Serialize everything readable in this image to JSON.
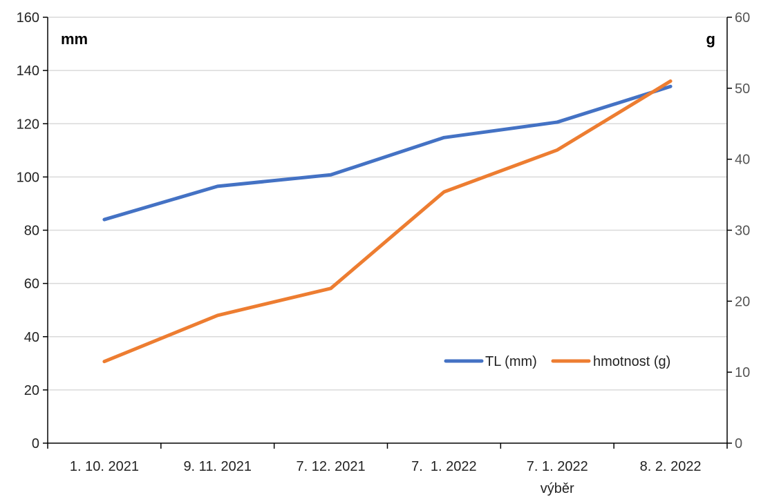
{
  "chart_data": {
    "type": "line",
    "categories": [
      "1. 10. 2021",
      "9. 11. 2021",
      "7. 12. 2021",
      "7.  1. 2022",
      "7. 1. 2022",
      "8. 2. 2022"
    ],
    "xlabel": "výběr",
    "y_left": {
      "unit": "mm",
      "ylim": [
        0,
        160
      ],
      "ticks": [
        0,
        20,
        40,
        60,
        80,
        100,
        120,
        140,
        160
      ]
    },
    "y_right": {
      "unit": "g",
      "ylim": [
        0,
        60
      ],
      "ticks": [
        0,
        10,
        20,
        30,
        40,
        50,
        60
      ]
    },
    "series": [
      {
        "name": "TL (mm)",
        "axis": "left",
        "color": "#4472C4",
        "values": [
          84,
          96.5,
          100.8,
          114.8,
          120.6,
          134
        ]
      },
      {
        "name": "hmotnost (g)",
        "axis": "right",
        "color": "#ED7D31",
        "values": [
          11.5,
          18,
          21.8,
          35.4,
          41.3,
          51
        ]
      }
    ],
    "grid": true,
    "legend_position": "bottom-right"
  }
}
